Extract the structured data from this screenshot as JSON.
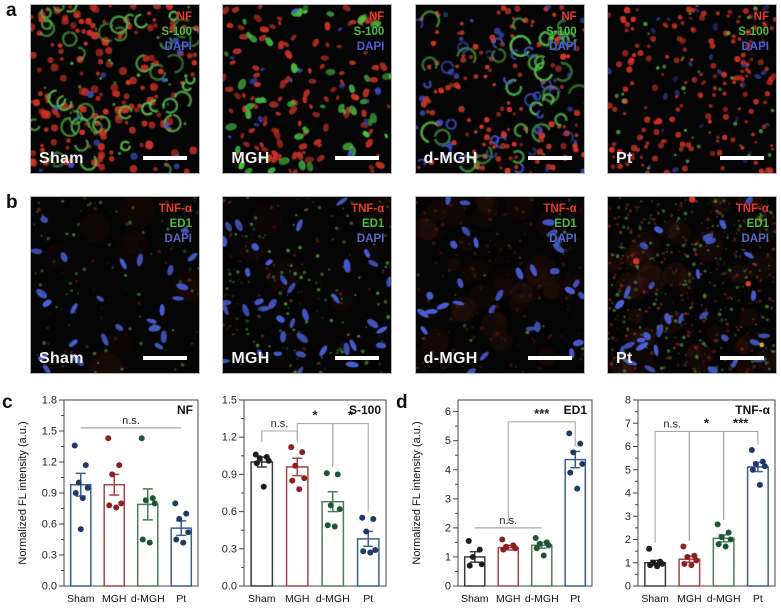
{
  "figure": {
    "letters": {
      "a": "a",
      "b": "b",
      "c": "c",
      "d": "d"
    }
  },
  "microscopy": {
    "rows": [
      {
        "row_label": "a",
        "legend": [
          {
            "text": "NF",
            "color": "#e8392a"
          },
          {
            "text": "S-100",
            "color": "#4fbd3f"
          },
          {
            "text": "DAPI",
            "color": "#4b5fe0"
          }
        ],
        "panels": [
          {
            "label": "Sham",
            "pattern": "a-sham"
          },
          {
            "label": "MGH",
            "pattern": "a-mgh"
          },
          {
            "label": "d-MGH",
            "pattern": "a-dmgh"
          },
          {
            "label": "Pt",
            "pattern": "a-pt"
          }
        ]
      },
      {
        "row_label": "b",
        "legend": [
          {
            "text": "TNF-α",
            "color": "#e8392a"
          },
          {
            "text": "ED1",
            "color": "#4fbd3f"
          },
          {
            "text": "DAPI",
            "color": "#5a68c9"
          }
        ],
        "panels": [
          {
            "label": "Sham",
            "pattern": "b-sham"
          },
          {
            "label": "MGH",
            "pattern": "b-mgh"
          },
          {
            "label": "d-MGH",
            "pattern": "b-dmgh"
          },
          {
            "label": "Pt",
            "pattern": "b-pt"
          }
        ]
      }
    ]
  },
  "chart_data": [
    {
      "type": "bar",
      "panel_label": "NF",
      "ylabel": "Normalized FL intensity (a.u.)",
      "categories": [
        "Sham",
        "MGH",
        "d-MGH",
        "Pt"
      ],
      "values": [
        0.98,
        0.98,
        0.79,
        0.56
      ],
      "errors": [
        0.11,
        0.1,
        0.15,
        0.07
      ],
      "bar_colors": [
        "#3a5f8f",
        "#a84444",
        "#4b7d5b",
        "#3a5f8f"
      ],
      "point_colors": [
        "#1f3a68",
        "#8c1f1f",
        "#1f5632",
        "#1f3a68"
      ],
      "points": [
        [
          1.36,
          1.17,
          1.0,
          0.95,
          0.9,
          0.85,
          0.55
        ],
        [
          1.43,
          1.17,
          1.08,
          0.8,
          0.78,
          0.76
        ],
        [
          1.43,
          0.85,
          0.83,
          0.8,
          0.45,
          0.42
        ],
        [
          0.8,
          0.7,
          0.65,
          0.52,
          0.45,
          0.42
        ]
      ],
      "ylim": [
        0,
        1.8
      ],
      "ytick_step": 0.3,
      "ytick_decimals": 1,
      "grid": false,
      "annotations": [
        {
          "type": "line",
          "from": 0,
          "to": 3,
          "y": 1.53,
          "label": "n.s."
        }
      ]
    },
    {
      "type": "bar",
      "panel_label": "S-100",
      "ylabel": "",
      "categories": [
        "Sham",
        "MGH",
        "d-MGH",
        "Pt"
      ],
      "values": [
        1.0,
        0.96,
        0.68,
        0.38
      ],
      "errors": [
        0.04,
        0.07,
        0.08,
        0.06
      ],
      "bar_colors": [
        "#3a3a3a",
        "#a84444",
        "#4b7d5b",
        "#3a5f8f"
      ],
      "point_colors": [
        "#1c1c1c",
        "#8c1f1f",
        "#1f5632",
        "#1f3a68"
      ],
      "points": [
        [
          1.06,
          1.04,
          1.03,
          1.01,
          0.99,
          0.8
        ],
        [
          1.12,
          1.08,
          0.97,
          0.87,
          0.85,
          0.78
        ],
        [
          0.91,
          0.9,
          0.65,
          0.62,
          0.49,
          0.48
        ],
        [
          0.55,
          0.54,
          0.44,
          0.29,
          0.28,
          0.27
        ]
      ],
      "ylim": [
        0,
        1.5
      ],
      "ytick_step": 0.3,
      "ytick_decimals": 1,
      "grid": false,
      "annotations": [
        {
          "type": "bracket",
          "from": 0,
          "to": 1,
          "y": 1.25,
          "label": "n.s.",
          "left_end": 1.16,
          "right_end": 1.16
        },
        {
          "type": "bracket",
          "from": 1,
          "to": 2,
          "y": 1.31,
          "label": "*",
          "left_end": 1.18,
          "right_end": 0.96
        },
        {
          "type": "bracket",
          "from": 2,
          "to": 3,
          "y": 1.31,
          "label": "*",
          "left_end": 0.97,
          "right_end": 0.6
        }
      ]
    },
    {
      "type": "bar",
      "panel_label": "ED1",
      "ylabel": "Normalized FL intensity (a.u.)",
      "categories": [
        "Sham",
        "MGH",
        "d-MGH",
        "Pt"
      ],
      "values": [
        1.0,
        1.32,
        1.4,
        4.35
      ],
      "errors": [
        0.18,
        0.08,
        0.1,
        0.28
      ],
      "bar_colors": [
        "#3a3a3a",
        "#a84444",
        "#4b7d5b",
        "#3a5f8f"
      ],
      "point_colors": [
        "#1c1c1c",
        "#8c1f1f",
        "#1f5632",
        "#1f3a68"
      ],
      "points": [
        [
          1.55,
          1.25,
          1.0,
          0.75,
          0.7
        ],
        [
          1.6,
          1.4,
          1.35,
          1.3,
          1.25
        ],
        [
          1.65,
          1.5,
          1.45,
          1.4,
          1.3,
          1.05
        ],
        [
          5.25,
          4.9,
          4.6,
          4.2,
          3.9,
          3.35
        ]
      ],
      "ylim": [
        0,
        6.4
      ],
      "ytick_step": 1,
      "ytick_decimals": 0,
      "grid": false,
      "annotations": [
        {
          "type": "line",
          "from": 0,
          "to": 2,
          "y": 2.0,
          "label": "n.s."
        },
        {
          "type": "bracket",
          "from": 1,
          "to": 3,
          "y": 5.65,
          "label": "***",
          "left_end": 2.15,
          "right_end": 4.8
        }
      ]
    },
    {
      "type": "bar",
      "panel_label": "TNF-α",
      "ylabel": "",
      "categories": [
        "Sham",
        "MGH",
        "d-MGH",
        "Pt"
      ],
      "values": [
        1.0,
        1.15,
        2.05,
        5.12
      ],
      "errors": [
        0.1,
        0.13,
        0.15,
        0.2
      ],
      "bar_colors": [
        "#3a3a3a",
        "#a84444",
        "#4b7d5b",
        "#3a5f8f"
      ],
      "point_colors": [
        "#1c1c1c",
        "#8c1f1f",
        "#1f5632",
        "#1f3a68"
      ],
      "points": [
        [
          1.6,
          1.05,
          1.0,
          0.95,
          0.9,
          0.85
        ],
        [
          1.7,
          1.3,
          1.25,
          1.1,
          0.95,
          0.9
        ],
        [
          2.65,
          2.3,
          2.1,
          2.0,
          1.8,
          1.7
        ],
        [
          5.85,
          5.35,
          5.25,
          5.15,
          5.0,
          4.35
        ]
      ],
      "ylim": [
        0,
        8
      ],
      "ytick_step": 1,
      "ytick_decimals": 0,
      "grid": false,
      "annotations": [
        {
          "type": "bracket",
          "from": 0,
          "to": 1,
          "y": 6.65,
          "label": "n.s.",
          "left_end": 1.85,
          "right_end": 1.95
        },
        {
          "type": "bracket",
          "from": 1,
          "to": 2,
          "y": 6.65,
          "label": "*",
          "left_end": 1.95,
          "right_end": 2.85
        },
        {
          "type": "bracket",
          "from": 2,
          "to": 3,
          "y": 6.65,
          "label": "***",
          "left_end": 2.85,
          "right_end": 6.1
        }
      ]
    }
  ]
}
